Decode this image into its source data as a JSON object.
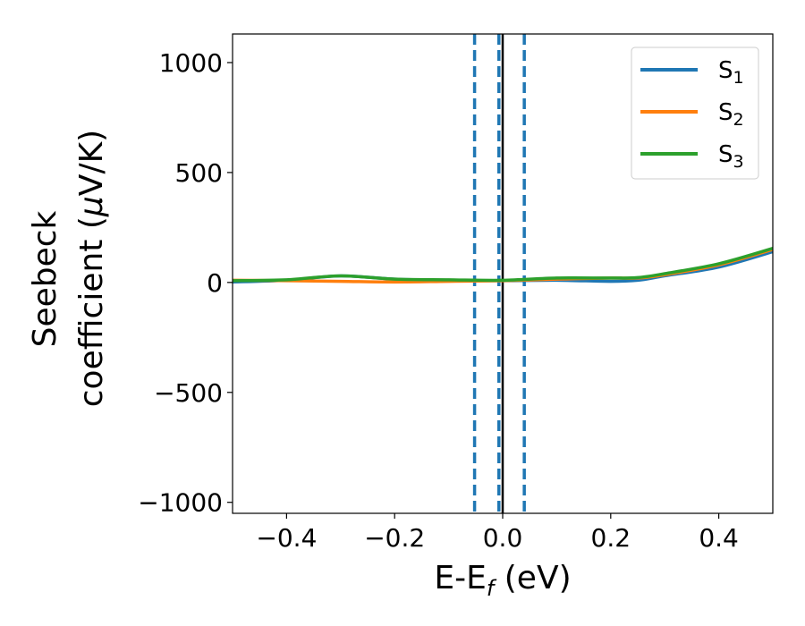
{
  "chart_data": {
    "type": "line",
    "xlabel": {
      "main": "E-E",
      "sub": "f",
      "unit": " (eV)"
    },
    "ylabel": {
      "line1": "Seebeck",
      "line2": "coefficient  (",
      "mu": "μ",
      "line2_end": "V/K)"
    },
    "xlim": [
      -0.5,
      0.5
    ],
    "ylim": [
      -1050,
      1130
    ],
    "xticks": [
      -0.4,
      -0.2,
      0.0,
      0.2,
      0.4
    ],
    "xtick_labels": [
      "−0.4",
      "−0.2",
      "0.0",
      "0.2",
      "0.4"
    ],
    "yticks": [
      -1000,
      -500,
      0,
      500,
      1000
    ],
    "ytick_labels": [
      "−1000",
      "−500",
      "0",
      "500",
      "1000"
    ],
    "legend_position": "top-right",
    "vertical_lines": [
      {
        "x": -0.052,
        "style": "dashed",
        "color": "#1f77b4"
      },
      {
        "x": -0.007,
        "style": "dashed",
        "color": "#1f77b4"
      },
      {
        "x": 0.0,
        "style": "solid",
        "color": "#000000"
      },
      {
        "x": 0.04,
        "style": "dashed",
        "color": "#1f77b4"
      }
    ],
    "series": [
      {
        "name": "S",
        "sub": "1",
        "color": "#1f77b4",
        "points": [
          [
            -0.5,
            2
          ],
          [
            -0.4,
            10
          ],
          [
            -0.3,
            30
          ],
          [
            -0.2,
            15
          ],
          [
            -0.1,
            10
          ],
          [
            0.0,
            8
          ],
          [
            0.1,
            10
          ],
          [
            0.2,
            5
          ],
          [
            0.25,
            10
          ],
          [
            0.3,
            30
          ],
          [
            0.4,
            70
          ],
          [
            0.5,
            140
          ]
        ]
      },
      {
        "name": "S",
        "sub": "2",
        "color": "#ff7f0e",
        "points": [
          [
            -0.5,
            10
          ],
          [
            -0.4,
            8
          ],
          [
            -0.3,
            5
          ],
          [
            -0.2,
            2
          ],
          [
            -0.1,
            5
          ],
          [
            0.0,
            8
          ],
          [
            0.1,
            15
          ],
          [
            0.2,
            20
          ],
          [
            0.25,
            20
          ],
          [
            0.3,
            35
          ],
          [
            0.4,
            80
          ],
          [
            0.5,
            150
          ]
        ]
      },
      {
        "name": "S",
        "sub": "3",
        "color": "#2ca02c",
        "points": [
          [
            -0.5,
            8
          ],
          [
            -0.4,
            12
          ],
          [
            -0.3,
            30
          ],
          [
            -0.2,
            15
          ],
          [
            -0.1,
            12
          ],
          [
            0.0,
            10
          ],
          [
            0.1,
            20
          ],
          [
            0.2,
            20
          ],
          [
            0.25,
            22
          ],
          [
            0.3,
            40
          ],
          [
            0.4,
            85
          ],
          [
            0.5,
            155
          ]
        ]
      }
    ]
  }
}
